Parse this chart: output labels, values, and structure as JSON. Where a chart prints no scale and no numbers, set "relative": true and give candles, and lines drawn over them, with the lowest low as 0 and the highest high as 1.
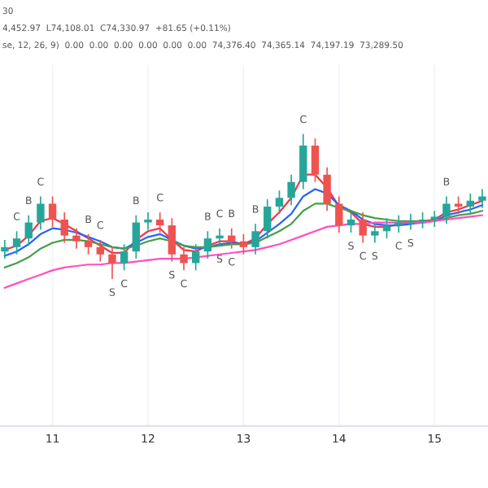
{
  "chart_data": {
    "type": "candlestick",
    "relative": true,
    "x": [
      10.5,
      10.625,
      10.75,
      10.875,
      11.0,
      11.125,
      11.25,
      11.375,
      11.5,
      11.625,
      11.75,
      11.875,
      12.0,
      12.125,
      12.25,
      12.375,
      12.5,
      12.625,
      12.75,
      12.875,
      13.0,
      13.125,
      13.25,
      13.375,
      13.5,
      13.625,
      13.75,
      13.875,
      14.0,
      14.125,
      14.25,
      14.375,
      14.5,
      14.625,
      14.75,
      14.875,
      15.0,
      15.125,
      15.25,
      15.375,
      15.5
    ],
    "ohlc": [
      [
        0.19,
        0.27,
        0.14,
        0.22
      ],
      [
        0.22,
        0.33,
        0.17,
        0.28
      ],
      [
        0.28,
        0.44,
        0.23,
        0.39
      ],
      [
        0.39,
        0.57,
        0.34,
        0.52
      ],
      [
        0.52,
        0.57,
        0.36,
        0.41
      ],
      [
        0.41,
        0.46,
        0.25,
        0.3
      ],
      [
        0.3,
        0.35,
        0.21,
        0.26
      ],
      [
        0.26,
        0.31,
        0.17,
        0.22
      ],
      [
        0.22,
        0.27,
        0.12,
        0.17
      ],
      [
        0.17,
        0.22,
        0.0,
        0.11
      ],
      [
        0.11,
        0.24,
        0.06,
        0.19
      ],
      [
        0.19,
        0.44,
        0.14,
        0.39
      ],
      [
        0.39,
        0.46,
        0.34,
        0.41
      ],
      [
        0.41,
        0.46,
        0.32,
        0.37
      ],
      [
        0.37,
        0.42,
        0.12,
        0.17
      ],
      [
        0.17,
        0.22,
        0.06,
        0.11
      ],
      [
        0.11,
        0.24,
        0.06,
        0.19
      ],
      [
        0.19,
        0.33,
        0.14,
        0.28
      ],
      [
        0.28,
        0.35,
        0.23,
        0.3
      ],
      [
        0.3,
        0.35,
        0.21,
        0.26
      ],
      [
        0.26,
        0.31,
        0.17,
        0.22
      ],
      [
        0.22,
        0.38,
        0.17,
        0.33
      ],
      [
        0.33,
        0.55,
        0.28,
        0.5
      ],
      [
        0.5,
        0.61,
        0.45,
        0.56
      ],
      [
        0.56,
        0.72,
        0.51,
        0.67
      ],
      [
        0.67,
        1.0,
        0.62,
        0.92
      ],
      [
        0.92,
        0.97,
        0.67,
        0.72
      ],
      [
        0.72,
        0.77,
        0.47,
        0.52
      ],
      [
        0.52,
        0.57,
        0.32,
        0.37
      ],
      [
        0.37,
        0.46,
        0.32,
        0.41
      ],
      [
        0.41,
        0.46,
        0.25,
        0.3
      ],
      [
        0.3,
        0.38,
        0.25,
        0.33
      ],
      [
        0.33,
        0.42,
        0.28,
        0.37
      ],
      [
        0.37,
        0.44,
        0.32,
        0.39
      ],
      [
        0.39,
        0.45,
        0.34,
        0.4
      ],
      [
        0.4,
        0.46,
        0.35,
        0.41
      ],
      [
        0.41,
        0.47,
        0.36,
        0.43
      ],
      [
        0.43,
        0.57,
        0.38,
        0.52
      ],
      [
        0.52,
        0.57,
        0.45,
        0.5
      ],
      [
        0.5,
        0.59,
        0.45,
        0.54
      ],
      [
        0.54,
        0.62,
        0.49,
        0.57
      ]
    ],
    "colors": [
      "#26a69a",
      "#26a69a",
      "#26a69a",
      "#26a69a",
      "#ef5350",
      "#ef5350",
      "#ef5350",
      "#ef5350",
      "#ef5350",
      "#ef5350",
      "#26a69a",
      "#26a69a",
      "#26a69a",
      "#ef5350",
      "#ef5350",
      "#ef5350",
      "#26a69a",
      "#26a69a",
      "#26a69a",
      "#ef5350",
      "#ef5350",
      "#26a69a",
      "#26a69a",
      "#26a69a",
      "#26a69a",
      "#26a69a",
      "#ef5350",
      "#ef5350",
      "#ef5350",
      "#26a69a",
      "#ef5350",
      "#26a69a",
      "#26a69a",
      "#26a69a",
      "#26a69a",
      "#26a69a",
      "#26a69a",
      "#26a69a",
      "#ef5350",
      "#26a69a",
      "#26a69a"
    ],
    "series": [
      {
        "type": "line",
        "color": "#f23645",
        "values": [
          0.2,
          0.23,
          0.3,
          0.4,
          0.42,
          0.38,
          0.33,
          0.28,
          0.23,
          0.18,
          0.18,
          0.27,
          0.33,
          0.35,
          0.27,
          0.2,
          0.19,
          0.23,
          0.26,
          0.26,
          0.24,
          0.28,
          0.38,
          0.46,
          0.56,
          0.72,
          0.72,
          0.63,
          0.5,
          0.46,
          0.38,
          0.36,
          0.36,
          0.38,
          0.39,
          0.4,
          0.41,
          0.46,
          0.48,
          0.51,
          0.54
        ]
      },
      {
        "type": "line",
        "color": "#2962ff",
        "values": [
          0.16,
          0.19,
          0.24,
          0.31,
          0.35,
          0.34,
          0.32,
          0.29,
          0.26,
          0.22,
          0.21,
          0.25,
          0.29,
          0.31,
          0.27,
          0.23,
          0.21,
          0.22,
          0.24,
          0.25,
          0.24,
          0.26,
          0.32,
          0.38,
          0.45,
          0.57,
          0.62,
          0.59,
          0.51,
          0.47,
          0.41,
          0.38,
          0.37,
          0.37,
          0.38,
          0.39,
          0.4,
          0.44,
          0.46,
          0.48,
          0.51
        ]
      },
      {
        "type": "line",
        "color": "#43a047",
        "values": [
          0.08,
          0.11,
          0.15,
          0.21,
          0.25,
          0.27,
          0.27,
          0.26,
          0.24,
          0.22,
          0.21,
          0.23,
          0.26,
          0.28,
          0.26,
          0.23,
          0.22,
          0.22,
          0.23,
          0.24,
          0.24,
          0.25,
          0.29,
          0.33,
          0.38,
          0.47,
          0.52,
          0.52,
          0.49,
          0.47,
          0.44,
          0.42,
          0.41,
          0.4,
          0.4,
          0.4,
          0.4,
          0.42,
          0.44,
          0.45,
          0.47
        ]
      },
      {
        "type": "line",
        "color": "#ff4fc0",
        "values": [
          -0.06,
          -0.03,
          0.0,
          0.03,
          0.06,
          0.08,
          0.09,
          0.1,
          0.1,
          0.11,
          0.11,
          0.12,
          0.13,
          0.14,
          0.14,
          0.14,
          0.15,
          0.16,
          0.17,
          0.18,
          0.19,
          0.2,
          0.22,
          0.24,
          0.27,
          0.3,
          0.33,
          0.36,
          0.37,
          0.38,
          0.38,
          0.39,
          0.39,
          0.39,
          0.39,
          0.39,
          0.4,
          0.41,
          0.42,
          0.43,
          0.44
        ]
      }
    ],
    "xlim": [
      10.45,
      15.56
    ],
    "xticks": [
      11,
      12,
      13,
      14,
      15
    ],
    "grid": true,
    "tick_labels": "x",
    "annotations": [
      "30",
      "4,452.97  L74,108.01  C74,330.97  +81.65 (+0.11%)",
      "se, 12, 26, 9)  0.00  0.00  0.00  0.00  0.00  0.00  74,376.40  74,365.14  74,197.19  73,289.50",
      {
        "text": "C",
        "x": 10.625,
        "y": 0.33
      },
      {
        "text": "B",
        "x": 10.75,
        "y": 0.44
      },
      {
        "text": "C",
        "x": 10.875,
        "y": 0.57
      },
      {
        "text": "B",
        "x": 11.375,
        "y": 0.31
      },
      {
        "text": "C",
        "x": 11.5,
        "y": 0.27
      },
      {
        "text": "S",
        "x": 11.625,
        "y": 0.0
      },
      {
        "text": "C",
        "x": 11.75,
        "y": 0.06
      },
      {
        "text": "B",
        "x": 11.875,
        "y": 0.44
      },
      {
        "text": "C",
        "x": 12.125,
        "y": 0.46
      },
      {
        "text": "S",
        "x": 12.25,
        "y": 0.12
      },
      {
        "text": "C",
        "x": 12.375,
        "y": 0.06
      },
      {
        "text": "B",
        "x": 12.625,
        "y": 0.33
      },
      {
        "text": "C",
        "x": 12.75,
        "y": 0.35
      },
      {
        "text": "S",
        "x": 12.75,
        "y": 0.23
      },
      {
        "text": "B",
        "x": 12.875,
        "y": 0.35
      },
      {
        "text": "C",
        "x": 12.875,
        "y": 0.21
      },
      {
        "text": "B",
        "x": 13.125,
        "y": 0.38
      },
      {
        "text": "C",
        "x": 13.625,
        "y": 1.0
      },
      {
        "text": "S",
        "x": 14.125,
        "y": 0.32
      },
      {
        "text": "C",
        "x": 14.25,
        "y": 0.25
      },
      {
        "text": "S",
        "x": 14.375,
        "y": 0.25
      },
      {
        "text": "C",
        "x": 14.625,
        "y": 0.32
      },
      {
        "text": "S",
        "x": 14.75,
        "y": 0.34
      },
      {
        "text": "B",
        "x": 15.125,
        "y": 0.57
      }
    ]
  }
}
